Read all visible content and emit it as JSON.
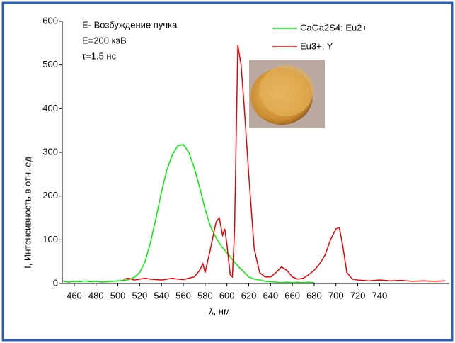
{
  "chart_data": {
    "type": "line",
    "annotations": [
      "E- Возбуждение пучка",
      "E=200 кэВ",
      "τ=1.5 нс"
    ],
    "xlabel": "λ, нм",
    "ylabel": "I, Интенсивность в отн. ед",
    "xlim": [
      449,
      804
    ],
    "ylim": [
      0,
      600
    ],
    "xticks": [
      460,
      480,
      500,
      520,
      540,
      560,
      580,
      600,
      620,
      640,
      660,
      680,
      700,
      720,
      740
    ],
    "yticks": [
      0,
      100,
      200,
      300,
      400,
      500,
      600
    ],
    "legend": "top-right",
    "series": [
      {
        "name": "CaGa2S4: Eu2+",
        "color": "#00ee00",
        "x": [
          450,
          455,
          460,
          465,
          470,
          475,
          480,
          485,
          490,
          495,
          500,
          505,
          510,
          515,
          520,
          525,
          530,
          535,
          540,
          545,
          550,
          555,
          560,
          565,
          570,
          575,
          580,
          585,
          590,
          595,
          600,
          605,
          610,
          615,
          620,
          625,
          630,
          635,
          640,
          645,
          650,
          655,
          660,
          665,
          670,
          675,
          680
        ],
        "values": [
          5,
          3,
          5,
          4,
          6,
          4,
          5,
          3,
          4,
          5,
          6,
          7,
          9,
          14,
          25,
          50,
          95,
          150,
          210,
          260,
          295,
          315,
          318,
          300,
          265,
          220,
          170,
          130,
          105,
          85,
          70,
          55,
          40,
          28,
          15,
          10,
          8,
          5,
          4,
          3,
          2,
          3,
          2,
          3,
          2,
          3,
          2
        ]
      },
      {
        "name": "Eu3+: Y",
        "color": "#ee0000",
        "x": [
          505,
          510,
          515,
          520,
          525,
          530,
          535,
          540,
          545,
          550,
          555,
          560,
          565,
          570,
          575,
          578,
          580,
          585,
          590,
          593,
          596,
          598,
          600,
          603,
          605,
          607,
          610,
          613,
          616,
          620,
          625,
          630,
          635,
          640,
          645,
          650,
          655,
          660,
          665,
          670,
          675,
          680,
          685,
          690,
          695,
          700,
          703,
          706,
          710,
          715,
          720,
          730,
          740,
          750,
          760,
          770,
          780,
          790,
          800
        ],
        "values": [
          10,
          12,
          8,
          10,
          12,
          10,
          9,
          8,
          10,
          12,
          10,
          9,
          12,
          15,
          30,
          45,
          25,
          80,
          140,
          150,
          110,
          125,
          90,
          20,
          15,
          120,
          545,
          500,
          400,
          250,
          80,
          25,
          15,
          15,
          25,
          38,
          30,
          15,
          10,
          12,
          20,
          30,
          45,
          65,
          100,
          125,
          128,
          90,
          25,
          10,
          8,
          6,
          8,
          6,
          7,
          5,
          6,
          5,
          6
        ]
      }
    ]
  }
}
